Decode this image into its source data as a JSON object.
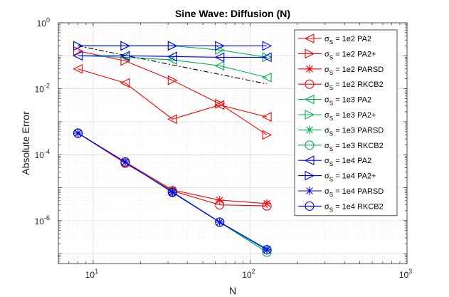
{
  "chart_data": {
    "type": "line",
    "title": "Sine Wave: Diffusion (N)",
    "xlabel": "N",
    "ylabel": "Absolute Error",
    "xscale": "log",
    "yscale": "log",
    "xlim": [
      6,
      1000
    ],
    "ylim": [
      5e-08,
      1
    ],
    "grid": true,
    "legend_position": "top-right",
    "x_ticks": [
      {
        "value": 10,
        "mantissa": "10",
        "exp": "1"
      },
      {
        "value": 100,
        "mantissa": "10",
        "exp": "2"
      },
      {
        "value": 1000,
        "mantissa": "10",
        "exp": "3"
      }
    ],
    "y_ticks": [
      {
        "value": 1,
        "mantissa": "10",
        "exp": "0"
      },
      {
        "value": 0.01,
        "mantissa": "10",
        "exp": "-2"
      },
      {
        "value": 0.0001,
        "mantissa": "10",
        "exp": "-4"
      },
      {
        "value": 1e-06,
        "mantissa": "10",
        "exp": "-6"
      }
    ],
    "x": [
      8,
      16,
      32,
      64,
      128
    ],
    "series": [
      {
        "name": "σS = 1e2  PA2",
        "color": "#ff0000",
        "marker": "triangle-left",
        "values": [
          0.04,
          0.015,
          0.0012,
          0.0032,
          0.0014
        ]
      },
      {
        "name": "σS = 1e2  PA2+",
        "color": "#ff0000",
        "marker": "triangle-right",
        "values": [
          0.14,
          0.07,
          0.018,
          0.0035,
          0.0004
        ]
      },
      {
        "name": "σS = 1e2  PARSD",
        "color": "#ff0000",
        "marker": "asterisk",
        "values": [
          0.00045,
          6e-05,
          8.5e-06,
          4.2e-06,
          3.3e-06
        ]
      },
      {
        "name": "σS = 1e2  RKCB2",
        "color": "#ff0000",
        "marker": "circle",
        "values": [
          0.00045,
          5.5e-05,
          8e-06,
          3e-06,
          2.8e-06
        ]
      },
      {
        "name": "σS = 1e3  PA2",
        "color": "#00b050",
        "marker": "triangle-left",
        "values": [
          0.1,
          0.09,
          0.075,
          0.05,
          0.022
        ]
      },
      {
        "name": "σS = 1e3  PA2+",
        "color": "#00b050",
        "marker": "triangle-right",
        "values": [
          0.2,
          0.2,
          0.2,
          0.15,
          0.09
        ]
      },
      {
        "name": "σS = 1e3  PARSD",
        "color": "#00b050",
        "marker": "asterisk",
        "values": [
          0.00045,
          6e-05,
          7.5e-06,
          9e-07,
          1.4e-07
        ]
      },
      {
        "name": "σS = 1e3  RKCB2",
        "color": "#00b050",
        "marker": "circle",
        "values": [
          0.00045,
          6e-05,
          7.5e-06,
          9e-07,
          1.1e-07
        ]
      },
      {
        "name": "σS = 1e4  PA2",
        "color": "#0000ff",
        "marker": "triangle-left",
        "values": [
          0.1,
          0.1,
          0.095,
          0.09,
          0.09
        ]
      },
      {
        "name": "σS = 1e4  PA2+",
        "color": "#0000ff",
        "marker": "triangle-right",
        "values": [
          0.2,
          0.2,
          0.2,
          0.2,
          0.2
        ]
      },
      {
        "name": "σS = 1e4  PARSD",
        "color": "#0000ff",
        "marker": "asterisk",
        "values": [
          0.00045,
          6e-05,
          7.2e-06,
          9e-07,
          1.3e-07
        ]
      },
      {
        "name": "σS = 1e4  RKCB2",
        "color": "#0000ff",
        "marker": "circle",
        "values": [
          0.00045,
          6e-05,
          7.2e-06,
          9e-07,
          1.3e-07
        ]
      }
    ],
    "reference_line": {
      "color": "#000000",
      "style": "dash-dot",
      "x": [
        8,
        128
      ],
      "values": [
        0.2,
        0.014
      ]
    }
  }
}
